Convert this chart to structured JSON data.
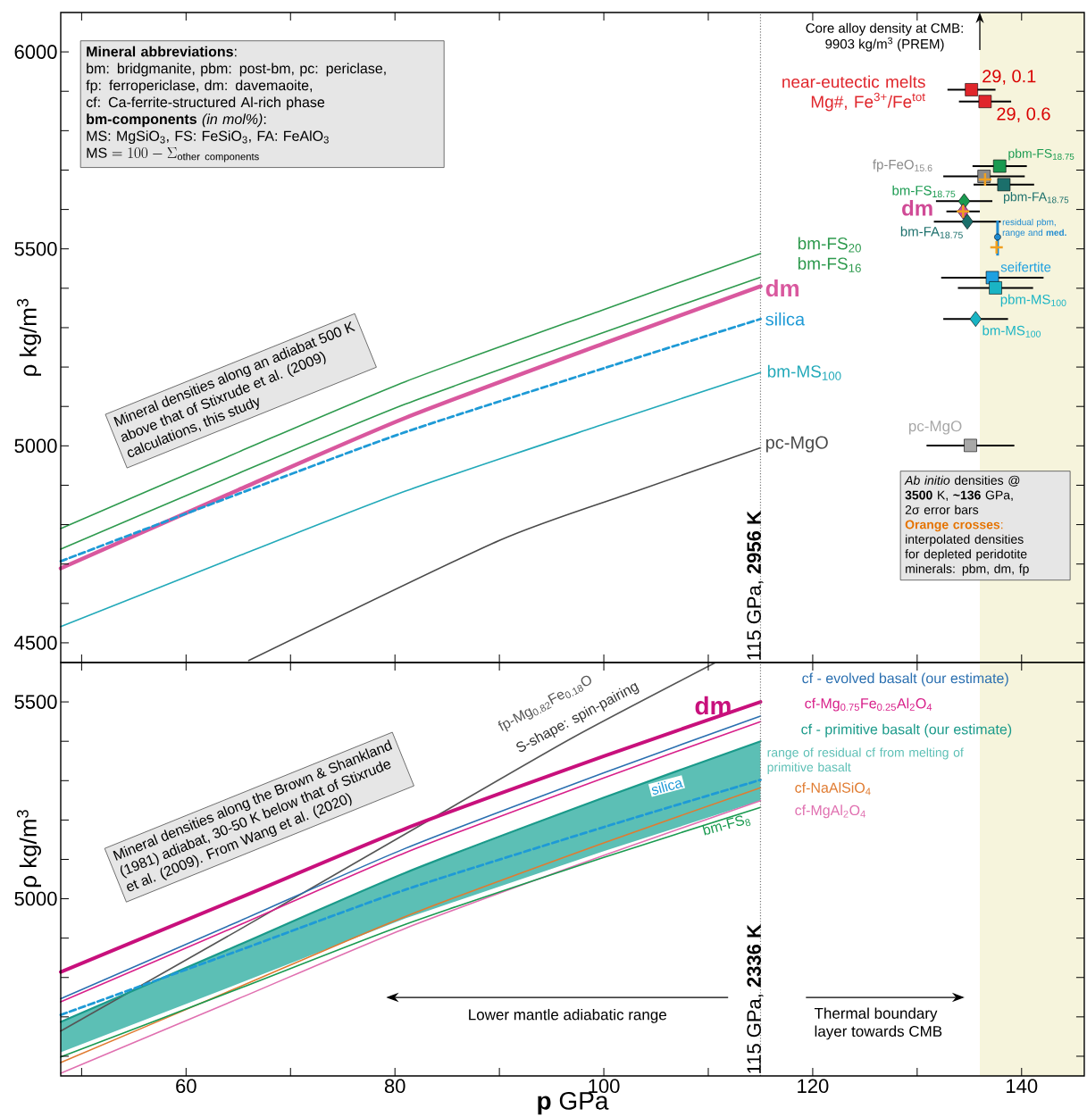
{
  "chart_data": [
    {
      "type": "line",
      "ylabel": "ρ kg/m$^{3}$",
      "xlim": [
        48,
        146
      ],
      "ylim": [
        4450,
        6100
      ],
      "xticks": [
        50,
        60,
        70,
        80,
        90,
        100,
        110,
        120,
        130,
        140
      ],
      "yticks": [
        4500,
        {
          "value": 4600,
          "label": null
        },
        {
          "value": 4700,
          "label": null
        },
        {
          "value": 4800,
          "label": null
        },
        {
          "value": 4900,
          "label": null
        },
        5000,
        {
          "value": 5100,
          "label": null
        },
        {
          "value": 5200,
          "label": null
        },
        {
          "value": 5300,
          "label": null
        },
        {
          "value": 5400,
          "label": null
        },
        5500,
        {
          "value": 5600,
          "label": null
        },
        {
          "value": 5700,
          "label": null
        },
        {
          "value": 5800,
          "label": null
        },
        {
          "value": 5900,
          "label": null
        },
        6000
      ],
      "tick_labels": "y",
      "bands": [
        {
          "axis": "x",
          "from": 136,
          "to": 146,
          "color": "#f6f4dc"
        }
      ],
      "ref_lines": [
        {
          "axis": "x",
          "value": 115,
          "label": "115 GPa, **2956 K**",
          "color": "#777777",
          "line_style": "dotted"
        }
      ],
      "series": [
        {
          "name": "bm-FS$_{20}$",
          "color": "#2e9a4e",
          "x": [
            48,
            65,
            81,
            100,
            115
          ],
          "values": [
            4790,
            4984,
            5163,
            5346,
            5488
          ]
        },
        {
          "name": "bm-FS$_{16}$",
          "color": "#2e9a4e",
          "x": [
            48,
            65,
            81,
            100,
            115
          ],
          "values": [
            4738,
            4930,
            5106,
            5288,
            5428
          ]
        },
        {
          "name": "dm",
          "color": "#d9589e",
          "x": [
            48,
            65,
            81,
            100,
            115
          ],
          "values": [
            4689,
            4888,
            5071,
            5260,
            5405
          ]
        },
        {
          "name": "silica",
          "color": "#1e9ad6",
          "line_style": "dashed",
          "x": [
            48,
            65,
            81,
            100,
            115
          ],
          "values": [
            4707,
            4878,
            5035,
            5197,
            5322
          ]
        },
        {
          "name": "bm-MS$_{100}$",
          "color": "#22a9b9",
          "x": [
            48,
            65,
            81,
            100,
            115
          ],
          "values": [
            4541,
            4720,
            4885,
            5055,
            5186
          ]
        },
        {
          "name": "pc-MgO",
          "color": "#4a4a4a",
          "x": [
            66,
            90,
            103,
            115
          ],
          "values": [
            4455,
            4760,
            4884,
            4995
          ]
        },
        {
          "name": "near-eutectic melts Mg#, Fe$^{3+}$/Fe$^{tot}$",
          "type": "scatter",
          "marker": "square",
          "color": "#e0262c",
          "x": [
            135.2,
            136.5
          ],
          "values": [
            5904,
            5874
          ],
          "xerrors": [
            2.3,
            2.5
          ]
        },
        {
          "name": "pbm-FS$_{18.75}$",
          "type": "scatter",
          "marker": "square",
          "color": "#1a9a50",
          "x": [
            137.9
          ],
          "values": [
            5710
          ],
          "xerrors": [
            2.6
          ]
        },
        {
          "name": "fp-FeO$_{15.6}$",
          "type": "scatter",
          "marker": "square",
          "color": "#8a8a8a",
          "x": [
            136.4
          ],
          "values": [
            5684
          ],
          "xerrors": [
            3.9
          ]
        },
        {
          "name": "pbm-FA$_{18.75}$",
          "type": "scatter",
          "marker": "square",
          "color": "#1b6f6b",
          "x": [
            138.3
          ],
          "values": [
            5663
          ],
          "xerrors": [
            2.9
          ]
        },
        {
          "name": "bm-FS$_{18.75}$",
          "type": "scatter",
          "marker": "diamond",
          "color": "#1a9a50",
          "x": [
            134.5
          ],
          "values": [
            5621
          ],
          "xerrors": [
            2.7
          ]
        },
        {
          "name": "dm",
          "type": "scatter",
          "marker": "diamond",
          "color": "#d04a96",
          "x": [
            134.4
          ],
          "values": [
            5595
          ],
          "xerrors": [
            1.6
          ]
        },
        {
          "name": "bm-FA$_{18.75}$",
          "type": "scatter",
          "marker": "diamond",
          "color": "#1b6f6b",
          "x": [
            134.8
          ],
          "values": [
            5569
          ],
          "xerrors": [
            3.2
          ]
        },
        {
          "name": "residual pbm, range and **med.**",
          "type": "scatter",
          "marker": "circle",
          "color": "#1e8ad0",
          "x": [
            137.7
          ],
          "values": [
            5530
          ],
          "errors": [
            [
              5483,
              5572
            ]
          ]
        },
        {
          "type": "scatter",
          "marker": "cross",
          "color": "#f0a020",
          "x": [
            136.5,
            134.4,
            137.6
          ],
          "values": [
            5676,
            5595,
            5504
          ]
        },
        {
          "name": "seifertite",
          "type": "scatter",
          "marker": "square",
          "color": "#1ea0e0",
          "x": [
            137.2
          ],
          "values": [
            5427
          ],
          "xerrors": [
            4.9
          ]
        },
        {
          "name": "pbm-MS$_{100}$",
          "type": "scatter",
          "marker": "square",
          "color": "#1ab4c4",
          "x": [
            137.5
          ],
          "values": [
            5401
          ],
          "xerrors": [
            3.6
          ]
        },
        {
          "name": "bm-MS$_{100}$",
          "type": "scatter",
          "marker": "diamond",
          "color": "#1ab4c4",
          "x": [
            135.6
          ],
          "values": [
            5322
          ],
          "xerrors": [
            3.1
          ]
        },
        {
          "name": "pc-MgO",
          "type": "scatter",
          "marker": "square",
          "color": "#a8a8a8",
          "x": [
            135.1
          ],
          "values": [
            5001
          ],
          "xerrors": [
            4.2
          ]
        }
      ],
      "annotations": [
        "**Mineral abbreviations**:",
        "bm: bridgmanite, pbm: post-bm, pc: periclase,",
        "fp: ferropericlase, dm: davemaoite,",
        "cf: Ca-ferrite-structured Al-rich phase",
        "**bm-components** *(in mol%)*:",
        "MS: MgSiO$_{3}$,  FS: FeSiO$_{3}$,  FA: FeAlO$_{3}$",
        "\\mathrm{MS} = 100 - \\Sigma_{\\mathrm{other\\ components}}",
        "Mineral densities along an adiabat 500 K",
        "above that of Stixrude et al. (2009)",
        "calculations, this study",
        {
          "text": "Core alloy density at CMB:",
          "x": 136,
          "y": 6100
        },
        "9903 kg/m$^{3}$ (PREM)",
        "*Ab initio* densities @",
        "**3500** K, **~136** GPa,",
        "2σ error bars",
        "**Orange crosses**:",
        "interpolated densities",
        "for depleted peridotite",
        "minerals: pbm, dm, fp",
        {
          "text": "29, 0.1",
          "x": 135.2,
          "y": 5904
        },
        {
          "text": "29, 0.6",
          "x": 136.5,
          "y": 5874
        }
      ]
    },
    {
      "type": "line",
      "xlabel": "**p** GPa",
      "ylabel": "ρ kg/m$^{3}$",
      "xlim": [
        48,
        146
      ],
      "ylim": [
        4550,
        5600
      ],
      "xticks": [
        {
          "value": 50,
          "label": null
        },
        60,
        {
          "value": 70,
          "label": null
        },
        80,
        {
          "value": 90,
          "label": null
        },
        100,
        {
          "value": 110,
          "label": null
        },
        120,
        {
          "value": 130,
          "label": null
        },
        140
      ],
      "yticks": [
        {
          "value": 4600,
          "label": null
        },
        {
          "value": 4700,
          "label": null
        },
        {
          "value": 4800,
          "label": null
        },
        {
          "value": 4900,
          "label": null
        },
        5000,
        {
          "value": 5100,
          "label": null
        },
        {
          "value": 5200,
          "label": null
        },
        {
          "value": 5300,
          "label": null
        },
        {
          "value": 5400,
          "label": null
        },
        5500
      ],
      "bands": [
        {
          "axis": "x",
          "from": 136,
          "to": 146,
          "color": "#f6f4dc"
        }
      ],
      "ref_lines": [
        {
          "axis": "x",
          "value": 115,
          "label": "115 GPa, **2336 K**",
          "color": "#777777",
          "line_style": "dotted"
        }
      ],
      "series": [
        {
          "name": "range of residual cf  from melting of primitive basalt",
          "type": "area",
          "color": "#5cbfb5",
          "x": [
            48,
            65,
            81,
            100,
            115
          ],
          "values": [
            null,
            null,
            null,
            null,
            null
          ],
          "upper": [
            4687,
            4882,
            5066,
            5257,
            5400
          ],
          "lower": [
            4610,
            4784,
            4950,
            5121,
            5249
          ]
        },
        {
          "name": "fp-Mg$_{0.82}$Fe$_{0.18}$O",
          "color": "#555555",
          "x": [
            48,
            65,
            82,
            97,
            110.7
          ],
          "values": [
            4664,
            4920,
            5180,
            5409,
            5600
          ]
        },
        {
          "name": "dm",
          "color": "#c8107c",
          "x": [
            48,
            65,
            81,
            100,
            115
          ],
          "values": [
            4814,
            5001,
            5178,
            5362,
            5500
          ]
        },
        {
          "name": "cf - evolved basalt (our estimate)",
          "color": "#2a6fb0",
          "x": [
            48,
            65,
            81,
            100,
            115
          ],
          "values": [
            4746,
            4942,
            5128,
            5320,
            5464
          ]
        },
        {
          "name": "cf-Mg$_{0.75}$Fe$_{0.25}$Al$_{2}$O$_{4}$",
          "color": "#d8208a",
          "x": [
            48,
            65,
            81,
            100,
            115
          ],
          "values": [
            4738,
            4932,
            5117,
            5307,
            5450
          ]
        },
        {
          "name": "cf - primitive basalt (our estimate)",
          "color": "#1a9a8a",
          "x": [
            48,
            65,
            81,
            100,
            115
          ],
          "values": [
            4687,
            4882,
            5066,
            5257,
            5400
          ]
        },
        {
          "name": "silica",
          "color": "#1e9ad6",
          "line_style": "dashed",
          "x": [
            48,
            65,
            81,
            100,
            115
          ],
          "values": [
            4705,
            4868,
            5023,
            5182,
            5302
          ]
        },
        {
          "name": "cf-NaAlSiO$_{4}$",
          "color": "#e07b30",
          "x": [
            48,
            65,
            81,
            100,
            115
          ],
          "values": [
            4584,
            4775,
            4955,
            5142,
            5282
          ]
        },
        {
          "name": "cf-MgAl$_{2}$O$_{4}$",
          "color": "#e070b0",
          "x": [
            48,
            65,
            81,
            100,
            115
          ],
          "values": [
            4557,
            4746,
            4925,
            5110,
            5249
          ]
        },
        {
          "name": "bm-FS$_{8}$",
          "color": "#1a9a50",
          "x": [
            48,
            65,
            81,
            100,
            115
          ],
          "values": [
            4598,
            4771,
            4935,
            5105,
            5232
          ]
        }
      ],
      "annotations": [
        "Mineral densities along the Brown & Shankland",
        "(1981) adiabat, 30-50 K below that of  Stixrude",
        "et al. (2009).    From Wang et al. (2020)",
        "S-shape: spin-pairing",
        "Lower mantle adiabatic range",
        "Thermal boundary",
        "layer towards CMB"
      ]
    }
  ]
}
